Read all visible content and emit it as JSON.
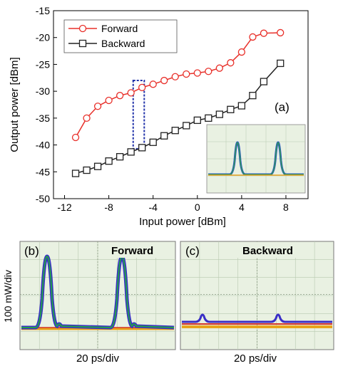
{
  "chart_data": {
    "type": "line",
    "panel_a": {
      "panel_label": "(a)",
      "xlabel": "Input power [dBm]",
      "ylabel": "Output power [dBm]",
      "xlim": [
        -13,
        10
      ],
      "ylim": [
        -50,
        -15
      ],
      "x_ticks": [
        -12,
        -8,
        -4,
        0,
        4,
        8
      ],
      "y_ticks": [
        -15,
        -20,
        -25,
        -30,
        -35,
        -40,
        -45,
        -50
      ],
      "x_tick_labels": [
        "-12",
        "-8",
        "-4",
        "0",
        "4",
        "8"
      ],
      "y_tick_labels": [
        "-15",
        "-20",
        "-25",
        "-30",
        "-35",
        "-40",
        "-45",
        "-50"
      ],
      "legend_position": "top-left",
      "series": [
        {
          "name": "Forward",
          "color": "#e8302a",
          "marker": "circle",
          "x": [
            -11,
            -10,
            -9,
            -8,
            -7,
            -6,
            -5,
            -4,
            -3,
            -2,
            -1,
            0,
            1,
            2,
            3,
            4,
            5,
            6,
            7.5
          ],
          "y": [
            -38.6,
            -35.0,
            -32.8,
            -31.7,
            -30.8,
            -30.3,
            -29.3,
            -28.7,
            -28.0,
            -27.3,
            -26.8,
            -26.6,
            -26.3,
            -25.7,
            -24.7,
            -22.7,
            -19.9,
            -19.2,
            -19.1
          ]
        },
        {
          "name": "Backward",
          "color": "#222222",
          "marker": "square",
          "x": [
            -11,
            -10,
            -9,
            -8,
            -7,
            -6,
            -5,
            -4,
            -3,
            -2,
            -1,
            0,
            1,
            2,
            3,
            4,
            5,
            6,
            7.5
          ],
          "y": [
            -45.3,
            -44.7,
            -44.0,
            -43.0,
            -42.2,
            -41.3,
            -40.5,
            -39.5,
            -38.3,
            -37.3,
            -36.4,
            -35.4,
            -35.0,
            -34.3,
            -33.4,
            -32.7,
            -30.8,
            -28.2,
            -24.8
          ]
        }
      ],
      "highlight_box": {
        "x_range": [
          -5.8,
          -4.8
        ],
        "y_range": [
          -40.7,
          -28.0
        ],
        "color": "#2233aa"
      }
    },
    "panel_b": {
      "panel_label": "(b)",
      "title": "Forward",
      "xlabel": "20 ps/div",
      "peak_level_div": 5.5,
      "baseline_div": 0.2
    },
    "panel_c": {
      "panel_label": "(c)",
      "title": "Backward",
      "xlabel": "20 ps/div",
      "peak_level_div": 1.3,
      "baseline_div": 0.7
    },
    "shared_ylabel_bottom": "100 mW/div"
  }
}
